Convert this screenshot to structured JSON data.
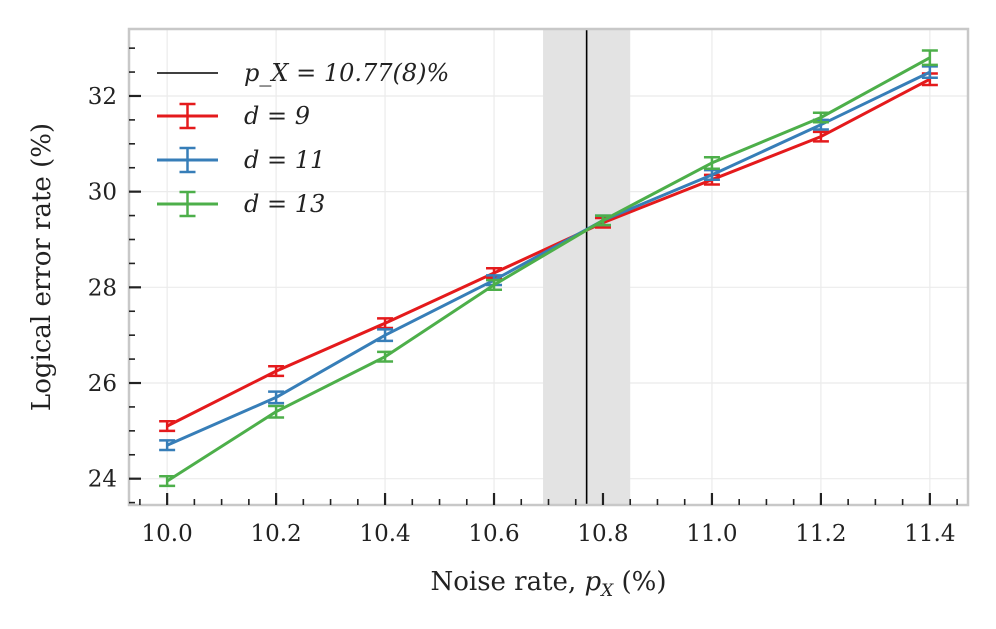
{
  "chart_data": {
    "type": "line",
    "title": "",
    "xlabel": "Noise rate, p_X (%)",
    "ylabel": "Logical error rate (%)",
    "xlim": [
      9.93,
      11.47
    ],
    "ylim": [
      23.45,
      33.4
    ],
    "xticks": [
      10.0,
      10.2,
      10.4,
      10.6,
      10.8,
      11.0,
      11.2,
      11.4
    ],
    "xtick_labels": [
      "10.0",
      "10.2",
      "10.4",
      "10.6",
      "10.8",
      "11.0",
      "11.2",
      "11.4"
    ],
    "yticks": [
      24,
      26,
      28,
      30,
      32
    ],
    "ytick_labels": [
      "24",
      "26",
      "28",
      "30",
      "32"
    ],
    "grid": true,
    "legend_position": "top-left",
    "threshold": {
      "label": "p_X = 10.77(8)%",
      "value": 10.77,
      "uncertainty": 0.08,
      "color": "#000000",
      "band_color": "#e3e3e3"
    },
    "x": [
      10.0,
      10.2,
      10.4,
      10.6,
      10.8,
      11.0,
      11.2,
      11.4
    ],
    "series": [
      {
        "name": "d = 9",
        "color": "#e41a1c",
        "values": [
          25.1,
          26.25,
          27.25,
          28.3,
          29.35,
          30.25,
          31.15,
          32.35
        ],
        "errors": [
          0.1,
          0.1,
          0.1,
          0.1,
          0.1,
          0.1,
          0.1,
          0.12
        ]
      },
      {
        "name": "d = 11",
        "color": "#377eb8",
        "values": [
          24.7,
          25.7,
          27.0,
          28.15,
          29.4,
          30.35,
          31.4,
          32.5
        ],
        "errors": [
          0.1,
          0.12,
          0.12,
          0.1,
          0.1,
          0.1,
          0.1,
          0.12
        ]
      },
      {
        "name": "d = 13",
        "color": "#4daf4a",
        "values": [
          23.95,
          25.4,
          26.55,
          28.05,
          29.4,
          30.6,
          31.55,
          32.8
        ],
        "errors": [
          0.1,
          0.12,
          0.1,
          0.1,
          0.1,
          0.12,
          0.1,
          0.15
        ]
      }
    ]
  }
}
